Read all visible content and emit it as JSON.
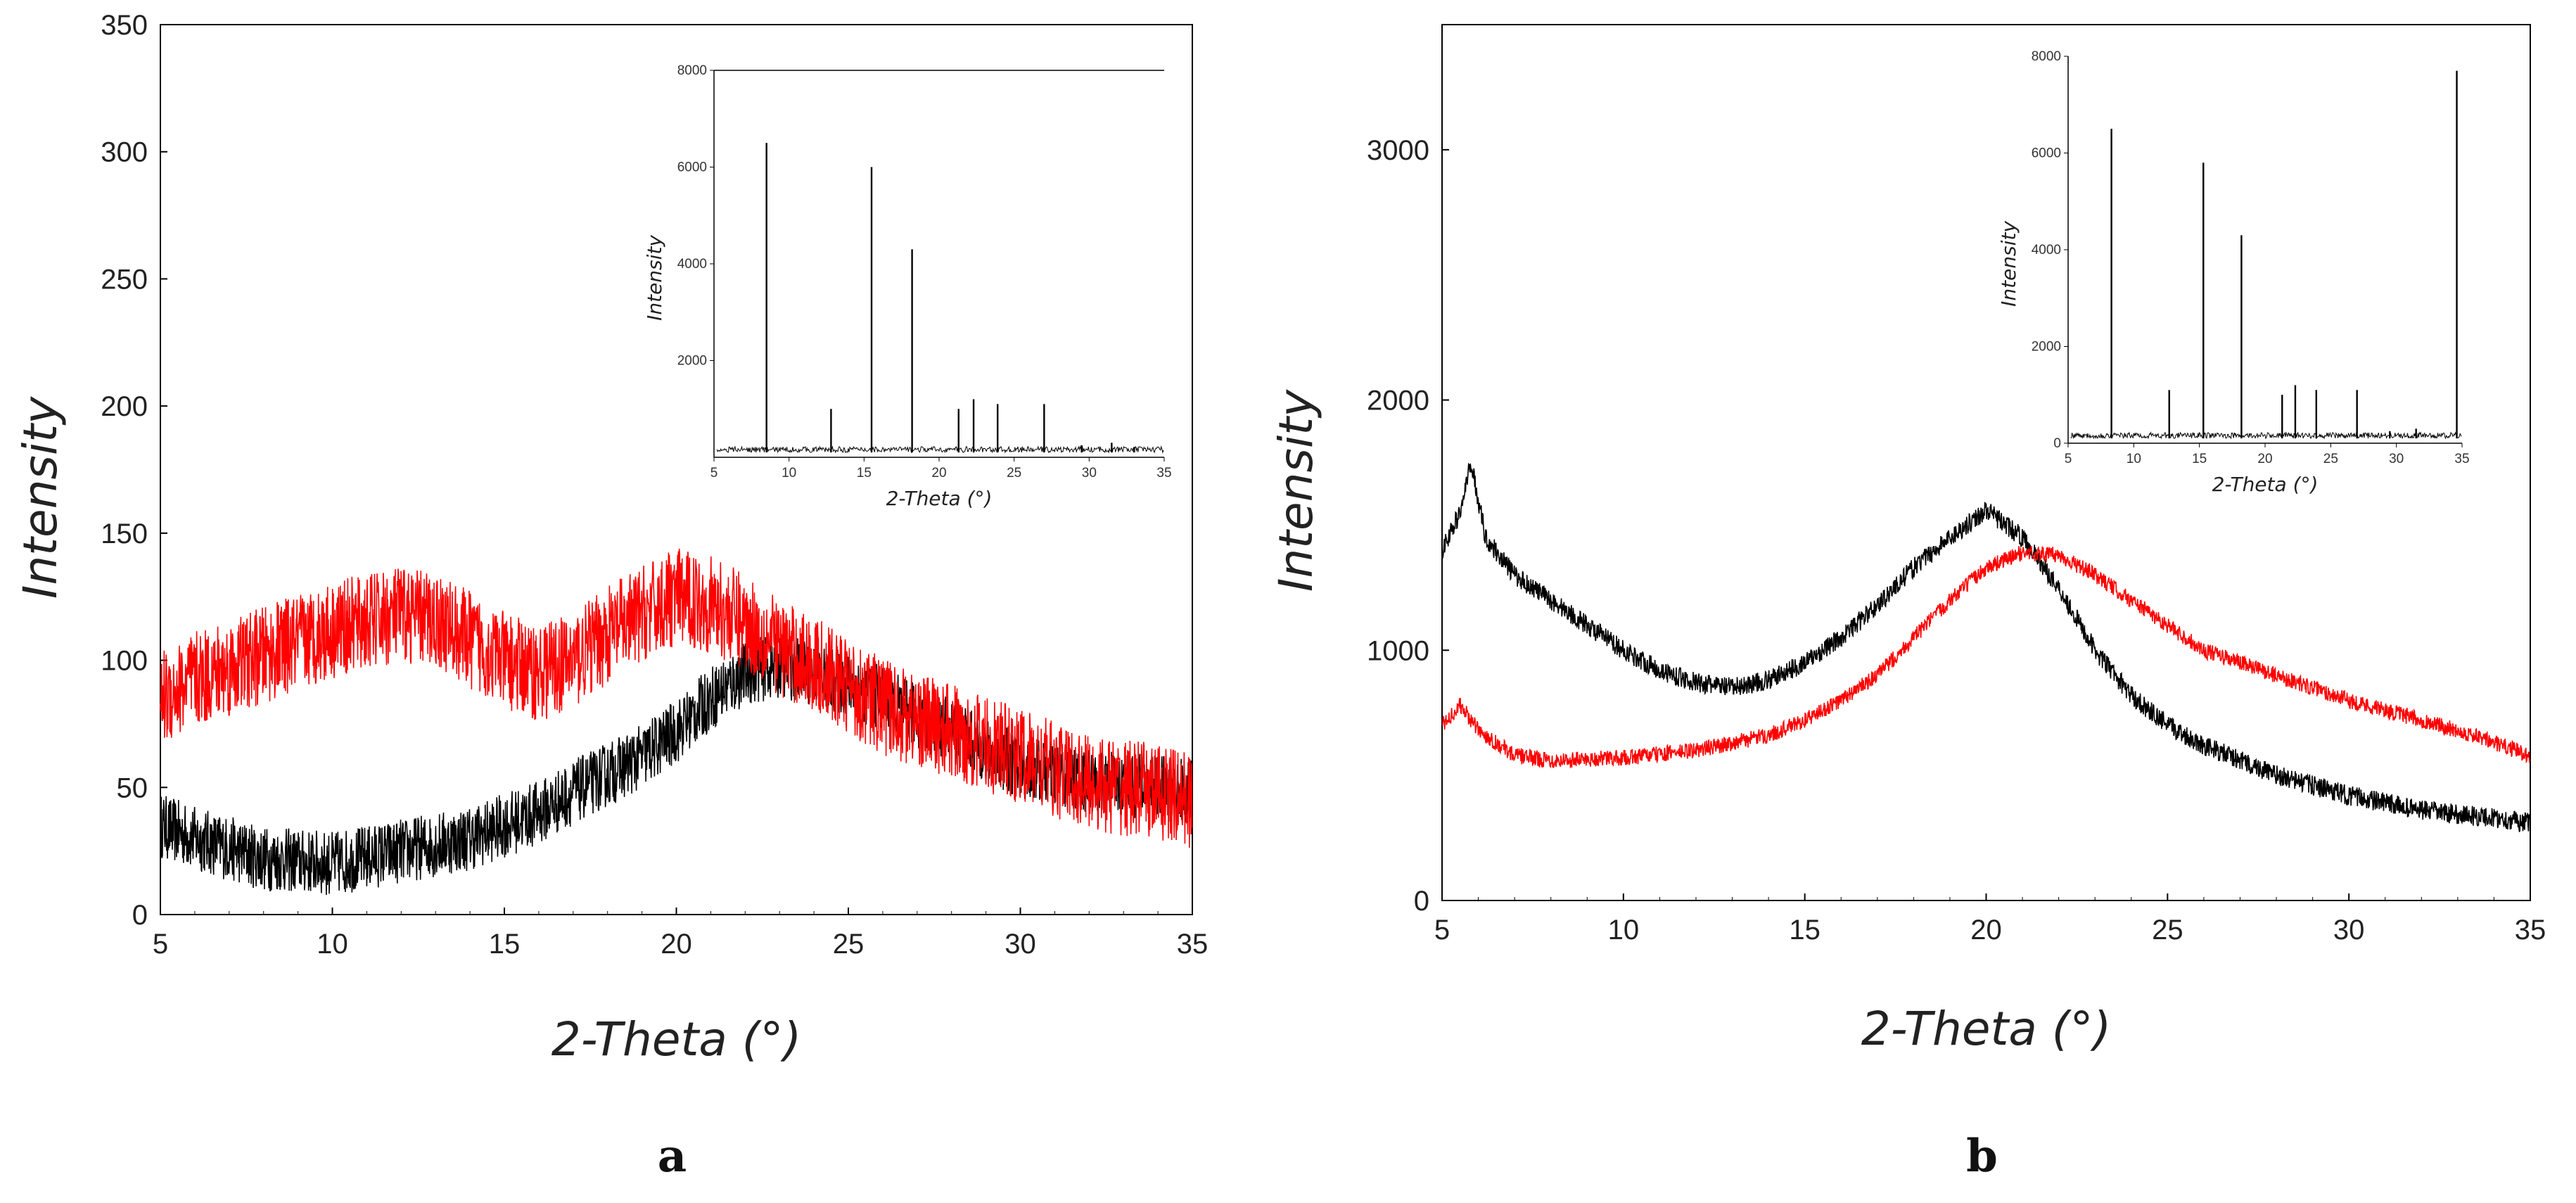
{
  "chart_data": [
    {
      "type": "line",
      "panel_label": "a",
      "xlabel": "2-Theta (°)",
      "ylabel": "Intensity",
      "xlim": [
        5,
        35
      ],
      "ylim": [
        0,
        350
      ],
      "xticks": [
        "5",
        "10",
        "15",
        "20",
        "25",
        "30",
        "35"
      ],
      "yticks": [
        "0",
        "50",
        "100",
        "150",
        "200",
        "250",
        "300",
        "350"
      ],
      "series": [
        {
          "name": "black",
          "color": "#000000",
          "x": [
            5,
            6,
            8,
            10,
            12,
            14,
            16,
            17,
            18,
            19,
            20,
            21,
            22,
            23,
            24,
            25,
            26,
            27,
            28,
            29,
            30,
            32,
            34,
            35
          ],
          "y": [
            35,
            30,
            22,
            20,
            25,
            30,
            40,
            48,
            55,
            62,
            72,
            85,
            95,
            98,
            95,
            90,
            85,
            78,
            72,
            65,
            58,
            52,
            50,
            48
          ],
          "noise": 8
        },
        {
          "name": "red",
          "color": "#ff0000",
          "x": [
            5,
            6,
            8,
            10,
            12,
            13,
            14,
            15,
            16,
            17,
            18,
            19,
            20,
            21,
            22,
            23,
            24,
            25,
            26,
            28,
            30,
            32,
            34,
            35
          ],
          "y": [
            85,
            92,
            102,
            112,
            118,
            116,
            108,
            100,
            95,
            100,
            110,
            118,
            125,
            122,
            115,
            105,
            98,
            90,
            82,
            72,
            62,
            52,
            48,
            45
          ],
          "noise": 12
        }
      ],
      "inset": {
        "xlabel": "2-Theta (°)",
        "ylabel": "Intensity",
        "xlim": [
          5,
          35
        ],
        "ylim": [
          0,
          8000
        ],
        "xticks": [
          "5",
          "10",
          "15",
          "20",
          "25",
          "30",
          "35"
        ],
        "yticks": [
          "2000",
          "4000",
          "6000",
          "8000"
        ],
        "baseline": 100,
        "peaks": [
          {
            "x": 8.5,
            "y": 6500
          },
          {
            "x": 12.8,
            "y": 1000
          },
          {
            "x": 15.5,
            "y": 6000
          },
          {
            "x": 18.2,
            "y": 4300
          },
          {
            "x": 21.3,
            "y": 1000
          },
          {
            "x": 22.3,
            "y": 1200
          },
          {
            "x": 23.9,
            "y": 1100
          },
          {
            "x": 27.0,
            "y": 1100
          },
          {
            "x": 29.5,
            "y": 250
          },
          {
            "x": 31.5,
            "y": 300
          },
          {
            "x": 33.0,
            "y": 200
          }
        ]
      }
    },
    {
      "type": "line",
      "panel_label": "b",
      "xlabel": "2-Theta (°)",
      "ylabel": "Intensity",
      "xlim": [
        5,
        35
      ],
      "ylim": [
        0,
        3500
      ],
      "xticks": [
        "5",
        "10",
        "15",
        "20",
        "25",
        "30",
        "35"
      ],
      "yticks": [
        "0",
        "1000",
        "2000",
        "3000"
      ],
      "series": [
        {
          "name": "black",
          "color": "#000000",
          "x": [
            5,
            5.5,
            5.8,
            6.2,
            7,
            8,
            9,
            10,
            11,
            12,
            13,
            14,
            15,
            16,
            17,
            18,
            19,
            20,
            21,
            22,
            23,
            24,
            25,
            26,
            27,
            28,
            30,
            32,
            34,
            35
          ],
          "y": [
            1400,
            1550,
            1750,
            1450,
            1300,
            1200,
            1100,
            1000,
            920,
            870,
            850,
            880,
            950,
            1050,
            1180,
            1330,
            1450,
            1560,
            1450,
            1250,
            1000,
            820,
            700,
            620,
            560,
            500,
            420,
            360,
            330,
            310
          ],
          "noise": 25
        },
        {
          "name": "red",
          "color": "#ff0000",
          "x": [
            5,
            5.5,
            6,
            7,
            8,
            10,
            12,
            14,
            15,
            16,
            17,
            18,
            19,
            20,
            21,
            22,
            23,
            24,
            25,
            26,
            27,
            28,
            29,
            30,
            31,
            32,
            33,
            34,
            35
          ],
          "y": [
            700,
            780,
            680,
            580,
            560,
            570,
            600,
            660,
            720,
            800,
            900,
            1050,
            1200,
            1330,
            1390,
            1380,
            1300,
            1200,
            1100,
            1000,
            950,
            900,
            850,
            800,
            760,
            720,
            680,
            630,
            580
          ],
          "noise": 20
        }
      ],
      "inset": {
        "xlabel": "2-Theta (°)",
        "ylabel": "Intensity",
        "xlim": [
          5,
          35
        ],
        "ylim": [
          0,
          8000
        ],
        "xticks": [
          "5",
          "10",
          "15",
          "20",
          "25",
          "30",
          "35"
        ],
        "yticks": [
          "0",
          "2000",
          "4000",
          "6000",
          "8000"
        ],
        "baseline": 100,
        "peaks": [
          {
            "x": 8.3,
            "y": 6500
          },
          {
            "x": 12.7,
            "y": 1100
          },
          {
            "x": 15.3,
            "y": 5800
          },
          {
            "x": 18.2,
            "y": 4300
          },
          {
            "x": 21.3,
            "y": 1000
          },
          {
            "x": 22.3,
            "y": 1200
          },
          {
            "x": 23.9,
            "y": 1100
          },
          {
            "x": 27.0,
            "y": 1100
          },
          {
            "x": 29.5,
            "y": 250
          },
          {
            "x": 31.5,
            "y": 300
          },
          {
            "x": 34.6,
            "y": 7700
          }
        ]
      }
    }
  ]
}
